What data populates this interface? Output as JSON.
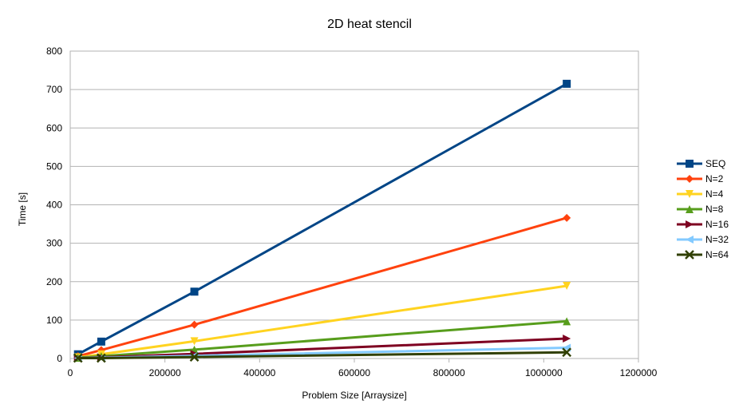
{
  "chart_data": {
    "type": "line",
    "title": "2D heat stencil",
    "xlabel": "Problem Size [Arraysize]",
    "ylabel": "Time [s]",
    "xlim": [
      0,
      1200000
    ],
    "ylim": [
      0,
      800
    ],
    "xticks": [
      "0",
      "200000",
      "400000",
      "600000",
      "800000",
      "1000000",
      "1200000"
    ],
    "yticks": [
      "0",
      "100",
      "200",
      "300",
      "400",
      "500",
      "600",
      "700",
      "800"
    ],
    "grid": "horizontal",
    "legend": "right",
    "x": [
      16384,
      65536,
      262144,
      1048576
    ],
    "series": [
      {
        "name": "SEQ",
        "color": "#004586",
        "marker": "square",
        "values": [
          11,
          44,
          174,
          715
        ]
      },
      {
        "name": "N=2",
        "color": "#ff420e",
        "marker": "diamond",
        "values": [
          6,
          22,
          88,
          366
        ]
      },
      {
        "name": "N=4",
        "color": "#ffd320",
        "marker": "triangle-down",
        "values": [
          3,
          11,
          45,
          189
        ]
      },
      {
        "name": "N=8",
        "color": "#579d1c",
        "marker": "triangle-up",
        "values": [
          2,
          6,
          23,
          97
        ]
      },
      {
        "name": "N=16",
        "color": "#7e0021",
        "marker": "triangle-right",
        "values": [
          1,
          3,
          12,
          52
        ]
      },
      {
        "name": "N=32",
        "color": "#83caff",
        "marker": "triangle-left",
        "values": [
          1,
          2,
          7,
          28
        ]
      },
      {
        "name": "N=64",
        "color": "#314004",
        "marker": "x",
        "values": [
          1,
          1,
          4,
          16
        ]
      }
    ]
  }
}
